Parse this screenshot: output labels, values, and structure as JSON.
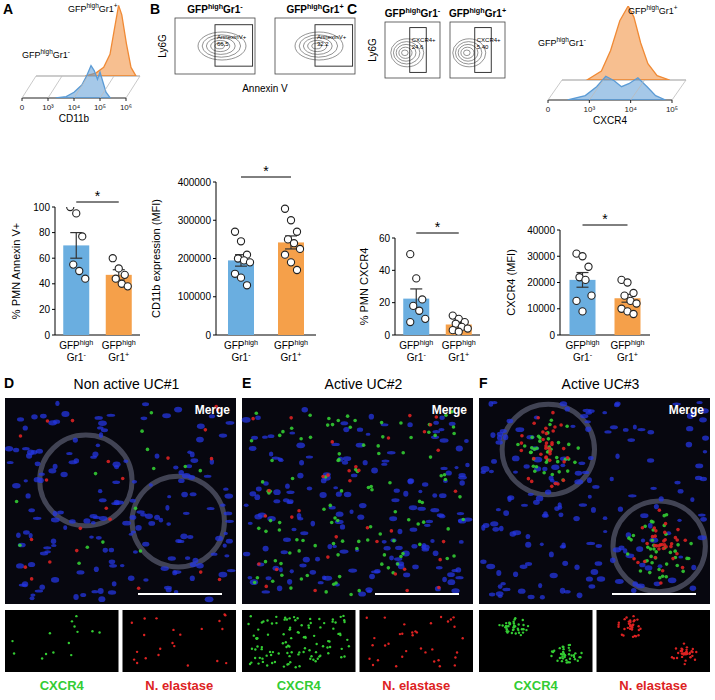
{
  "panel_labels": [
    "A",
    "B",
    "C",
    "D",
    "E",
    "F"
  ],
  "chart_data": [
    {
      "type": "area",
      "xlabel": "CD11b",
      "log": "x",
      "xlim": [
        0,
        1000000
      ],
      "xticks": [
        0,
        {
          "value": 1000,
          "label": "10³"
        },
        {
          "value": 10000,
          "label": "10⁴"
        },
        {
          "value": 100000,
          "label": "10⁵"
        },
        {
          "value": 1000000,
          "label": "10⁶"
        }
      ],
      "ylim": [
        0,
        100
      ],
      "tick_labels": "x",
      "series": [
        {
          "name": "GFPhighGr1-",
          "color": "#5b9bd5",
          "x": [
            2000,
            5000,
            10000,
            20000,
            30000,
            45000,
            60000,
            80000,
            100000,
            130000,
            170000,
            250000
          ],
          "values": [
            0,
            2,
            8,
            18,
            30,
            45,
            38,
            26,
            36,
            22,
            8,
            0
          ]
        },
        {
          "name": "GFPhighGr1+",
          "color": "#f08a35",
          "x": [
            8000,
            20000,
            40000,
            70000,
            100000,
            150000,
            200000,
            300000,
            450000,
            700000
          ],
          "values": [
            0,
            4,
            12,
            30,
            62,
            98,
            85,
            45,
            12,
            0
          ]
        }
      ]
    },
    {
      "type": "area",
      "xlabel": "CXCR4",
      "log": "x",
      "xlim": [
        0,
        100000
      ],
      "xticks": [
        0,
        {
          "value": 1000,
          "label": "10³"
        },
        {
          "value": 10000,
          "label": "10⁴"
        },
        {
          "value": 100000,
          "label": "10⁵"
        }
      ],
      "ylim": [
        0,
        100
      ],
      "tick_labels": "x",
      "series": [
        {
          "name": "GFPhighGr1-",
          "color": "#5b9bd5",
          "x": [
            300,
            800,
            1500,
            2500,
            4000,
            6000,
            9000,
            15000,
            25000,
            40000,
            70000
          ],
          "values": [
            0,
            6,
            18,
            32,
            26,
            18,
            22,
            30,
            18,
            6,
            0
          ]
        },
        {
          "name": "GFPhighGr1+",
          "color": "#f08a35",
          "x": [
            400,
            900,
            1500,
            2500,
            4000,
            5500,
            8000,
            12000,
            20000,
            40000
          ],
          "values": [
            0,
            12,
            40,
            80,
            100,
            85,
            50,
            22,
            6,
            0
          ]
        }
      ]
    },
    {
      "type": "bar",
      "ylabel": "% PMN Annexin V+",
      "categories": [
        "GFPhighGr1-",
        "GFPhighGr1+"
      ],
      "values": [
        70,
        47
      ],
      "errors": [
        10,
        4
      ],
      "points": [
        [
          100,
          95,
          77,
          55,
          50,
          44
        ],
        [
          60,
          52,
          47,
          44,
          40,
          38
        ]
      ],
      "colors": [
        "#6aaee0",
        "#f5a04a"
      ],
      "ylim": [
        0,
        100
      ],
      "yticks": [
        0,
        20,
        40,
        60,
        80,
        100
      ],
      "annotations": [
        "*"
      ]
    },
    {
      "type": "bar",
      "ylabel": "CD11b expression (MFI)",
      "categories": [
        "GFPhighGr1-",
        "GFPhighGr1+"
      ],
      "values": [
        195000,
        242000
      ],
      "errors": [
        15000,
        17000
      ],
      "points": [
        [
          270000,
          245000,
          210000,
          200000,
          195000,
          190000,
          160000,
          150000,
          130000
        ],
        [
          330000,
          300000,
          270000,
          250000,
          240000,
          225000,
          210000,
          190000,
          170000
        ]
      ],
      "colors": [
        "#6aaee0",
        "#f5a04a"
      ],
      "ylim": [
        0,
        400000
      ],
      "yticks": [
        0,
        100000,
        200000,
        300000,
        400000
      ],
      "annotations": [
        "*"
      ]
    },
    {
      "type": "bar",
      "ylabel": "% PMN CXCR4",
      "categories": [
        "GFPhighGr1-",
        "GFPhighGr1+"
      ],
      "values": [
        22.5,
        6.5
      ],
      "errors": [
        6,
        1.2
      ],
      "points": [
        [
          50,
          35,
          22,
          18,
          15,
          10,
          8
        ],
        [
          12,
          10,
          8,
          7,
          5,
          4,
          3,
          2
        ]
      ],
      "colors": [
        "#6aaee0",
        "#f5a04a"
      ],
      "ylim": [
        0,
        60
      ],
      "yticks": [
        0,
        20,
        40,
        60
      ],
      "annotations": [
        "*"
      ]
    },
    {
      "type": "bar",
      "ylabel": "CXCR4 (MFI)",
      "categories": [
        "GFPhighGr1-",
        "GFPhighGr1+"
      ],
      "values": [
        21000,
        14000
      ],
      "errors": [
        2800,
        1500
      ],
      "points": [
        [
          31000,
          30000,
          26000,
          22000,
          21000,
          15000,
          13000,
          9000
        ],
        [
          21000,
          20000,
          16000,
          15000,
          13000,
          12000,
          10000,
          9000,
          8000
        ]
      ],
      "colors": [
        "#6aaee0",
        "#f5a04a"
      ],
      "ylim": [
        0,
        40000
      ],
      "yticks": [
        0,
        10000,
        20000,
        30000,
        40000
      ],
      "annotations": [
        "*"
      ]
    }
  ],
  "flow_panels": [
    {
      "ylabel": "Ly6G",
      "xlabel": "Annexin V",
      "plots": [
        {
          "title": "GFPhighGr1-",
          "gate_label": "AnnexinV+",
          "gate_value": {
            "value": 66.5,
            "label": "66.5"
          }
        },
        {
          "title": "GFPhighGr1+",
          "gate_label": "AnnexinV+",
          "gate_value": {
            "value": 32.2,
            "label": "32.2"
          }
        }
      ]
    },
    {
      "ylabel": "Ly6G",
      "plots": [
        {
          "title": "GFPhighGr1-",
          "gate_label": "CXCR4+",
          "gate_value": {
            "value": 24.6,
            "label": "24.6"
          }
        },
        {
          "title": "GFPhighGr1+",
          "gate_label": "CXCR4+",
          "gate_value": {
            "value": 5.4,
            "label": "5.40"
          }
        }
      ]
    }
  ],
  "micrographs": [
    {
      "title": "Non active UC#1",
      "overlay_label": "Merge",
      "channels": [
        "CXCR4",
        "N. elastase"
      ]
    },
    {
      "title": "Active UC#2",
      "overlay_label": "Merge",
      "channels": [
        "CXCR4",
        "N. elastase"
      ]
    },
    {
      "title": "Active UC#3",
      "overlay_label": "Merge",
      "channels": [
        "CXCR4",
        "N. elastase"
      ]
    }
  ],
  "channel_colors": [
    "#33cc33",
    "#dd2222"
  ]
}
